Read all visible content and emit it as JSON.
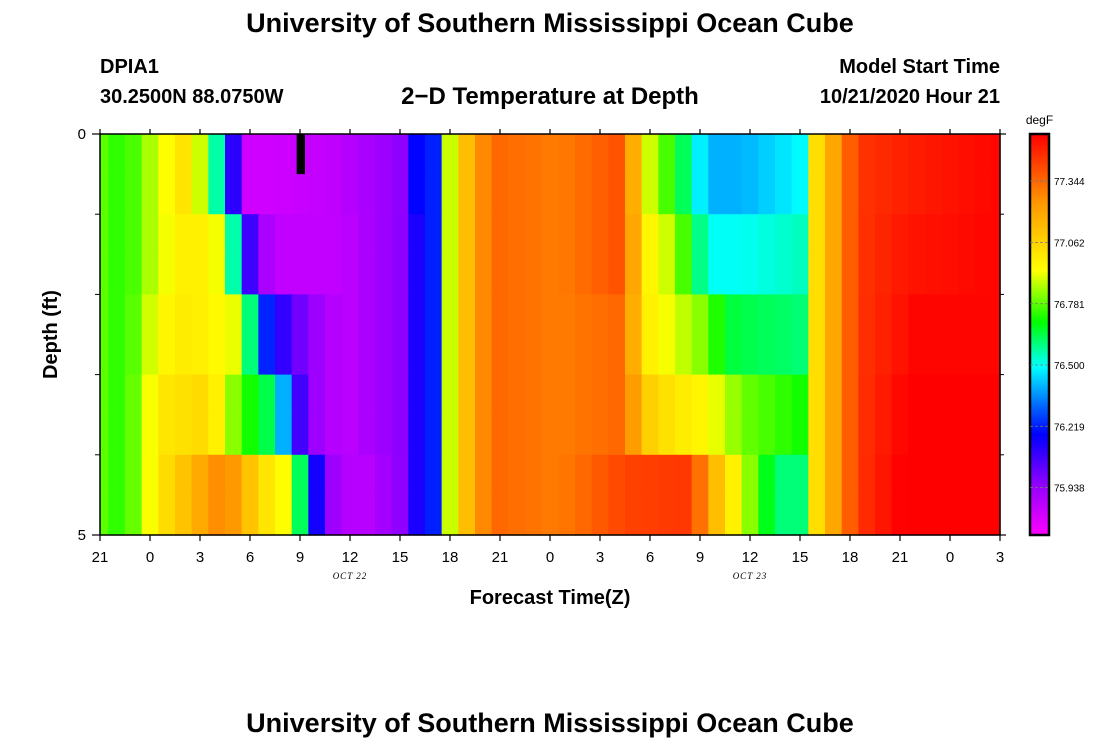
{
  "header": {
    "title": "University of Southern Mississippi Ocean Cube",
    "station_id": "DPIA1",
    "coordinates": "30.2500N 88.0750W",
    "plot_title": "2−D Temperature at Depth",
    "model_start_label": "Model Start Time",
    "model_start_value": "10/21/2020 Hour 21"
  },
  "footer": {
    "title": "University of Southern Mississippi Ocean Cube"
  },
  "chart_data": {
    "type": "heatmap",
    "title": "2−D Temperature at Depth",
    "xlabel": "Forecast Time(Z)",
    "ylabel": "Depth (ft)",
    "x_hours_from_start": [
      0,
      1,
      2,
      3,
      4,
      5,
      6,
      7,
      8,
      9,
      10,
      11,
      12,
      13,
      14,
      15,
      16,
      17,
      18,
      19,
      20,
      21,
      22,
      23,
      24,
      25,
      26,
      27,
      28,
      29,
      30,
      31,
      32,
      33,
      34,
      35,
      36,
      37,
      38,
      39,
      40,
      41,
      42,
      43,
      44,
      45,
      46,
      47,
      48,
      49,
      50,
      51,
      52,
      53,
      54
    ],
    "x_range": [
      0,
      54
    ],
    "x_tick_positions": [
      0,
      3,
      6,
      9,
      12,
      15,
      18,
      21,
      24,
      27,
      30,
      33,
      36,
      39,
      42,
      45,
      48,
      51,
      54
    ],
    "x_tick_labels": [
      "21",
      "0",
      "3",
      "6",
      "9",
      "12",
      "15",
      "18",
      "21",
      "0",
      "3",
      "6",
      "9",
      "12",
      "15",
      "18",
      "21",
      "0",
      "3"
    ],
    "date_labels": [
      {
        "x": 15,
        "text": "OCT 22"
      },
      {
        "x": 39,
        "text": "OCT 23"
      }
    ],
    "y_range": [
      0,
      5
    ],
    "y_tick_labels": [
      {
        "y": 0,
        "text": "0"
      },
      {
        "y": 5,
        "text": "5"
      }
    ],
    "y_minor_ticks": [
      1,
      2,
      3,
      4
    ],
    "depth_layers": [
      0.25,
      0.75,
      1.25,
      1.75,
      2.25,
      2.75,
      3.25,
      3.75,
      4.25,
      4.75
    ],
    "colorbar": {
      "units": "degF",
      "min": 75.72,
      "max": 77.56,
      "tick_values": [
        75.938,
        76.219,
        76.5,
        76.781,
        77.062,
        77.344
      ],
      "tick_labels": [
        "75.938",
        "76.219",
        "76.500",
        "76.781",
        "77.062",
        "77.344"
      ]
    },
    "layer_profiles": [
      {
        "depth_rows": [
          0,
          1
        ],
        "knots": [
          [
            0,
            76.78
          ],
          [
            1.5,
            76.72
          ],
          [
            3.5,
            76.9
          ],
          [
            5.5,
            77.05
          ],
          [
            7.5,
            76.4
          ],
          [
            8.5,
            75.82
          ],
          [
            10.5,
            75.82
          ],
          [
            14.5,
            75.86
          ],
          [
            18,
            75.95
          ],
          [
            19.5,
            76.3
          ],
          [
            20.5,
            76.72
          ],
          [
            21.5,
            77.05
          ],
          [
            23.5,
            77.35
          ],
          [
            27.5,
            77.3
          ],
          [
            31.5,
            77.4
          ],
          [
            32.5,
            76.95
          ],
          [
            34.5,
            76.7
          ],
          [
            36.5,
            76.4
          ],
          [
            38.5,
            76.4
          ],
          [
            42.5,
            76.5
          ],
          [
            42.8,
            77.0
          ],
          [
            45.5,
            77.45
          ],
          [
            48.5,
            77.5
          ],
          [
            54,
            77.55
          ]
        ]
      },
      {
        "depth_rows": [
          2,
          3
        ],
        "knots": [
          [
            0,
            76.78
          ],
          [
            1.5,
            76.72
          ],
          [
            3.5,
            76.9
          ],
          [
            5.5,
            77.0
          ],
          [
            7.5,
            76.9
          ],
          [
            8.5,
            76.22
          ],
          [
            9.5,
            75.94
          ],
          [
            10.5,
            75.85
          ],
          [
            14.5,
            75.85
          ],
          [
            18.5,
            75.97
          ],
          [
            19.5,
            76.3
          ],
          [
            20.5,
            76.72
          ],
          [
            21.5,
            77.05
          ],
          [
            23.5,
            77.35
          ],
          [
            27.5,
            77.3
          ],
          [
            31.5,
            77.4
          ],
          [
            32.5,
            77.0
          ],
          [
            34.5,
            76.85
          ],
          [
            36.5,
            76.5
          ],
          [
            38.5,
            76.5
          ],
          [
            42.5,
            76.55
          ],
          [
            42.8,
            77.0
          ],
          [
            45.5,
            77.45
          ],
          [
            48.5,
            77.52
          ],
          [
            54,
            77.55
          ]
        ]
      },
      {
        "depth_rows": [
          4,
          5
        ],
        "knots": [
          [
            0,
            76.78
          ],
          [
            1.5,
            76.72
          ],
          [
            3.5,
            76.95
          ],
          [
            5.5,
            77.0
          ],
          [
            8.5,
            76.9
          ],
          [
            9.5,
            76.3
          ],
          [
            10.5,
            76.15
          ],
          [
            12.5,
            75.95
          ],
          [
            14.5,
            75.85
          ],
          [
            18.5,
            75.97
          ],
          [
            19.5,
            76.3
          ],
          [
            20.5,
            76.72
          ],
          [
            21.5,
            77.05
          ],
          [
            23.5,
            77.35
          ],
          [
            27.5,
            77.3
          ],
          [
            31.5,
            77.35
          ],
          [
            32.5,
            77.0
          ],
          [
            34.5,
            76.9
          ],
          [
            36.5,
            76.8
          ],
          [
            37.5,
            76.65
          ],
          [
            42.5,
            76.6
          ],
          [
            42.8,
            77.0
          ],
          [
            45.5,
            77.45
          ],
          [
            49,
            77.55
          ],
          [
            54,
            77.55
          ]
        ]
      },
      {
        "depth_rows": [
          6,
          7
        ],
        "knots": [
          [
            0,
            76.78
          ],
          [
            1.5,
            76.72
          ],
          [
            3.5,
            77.0
          ],
          [
            6.5,
            77.05
          ],
          [
            8.5,
            76.75
          ],
          [
            10.5,
            76.6
          ],
          [
            11.5,
            76.2
          ],
          [
            12.5,
            75.95
          ],
          [
            14.5,
            75.85
          ],
          [
            18.5,
            75.97
          ],
          [
            19.5,
            76.3
          ],
          [
            20.5,
            76.72
          ],
          [
            21.5,
            77.05
          ],
          [
            23.5,
            77.35
          ],
          [
            27.5,
            77.3
          ],
          [
            31.5,
            77.35
          ],
          [
            32.5,
            77.1
          ],
          [
            34.5,
            77.0
          ],
          [
            36.5,
            76.95
          ],
          [
            38.5,
            76.8
          ],
          [
            40.5,
            76.75
          ],
          [
            42.5,
            76.7
          ],
          [
            42.8,
            77.0
          ],
          [
            45.5,
            77.45
          ],
          [
            49,
            77.58
          ],
          [
            54,
            77.56
          ]
        ]
      },
      {
        "depth_rows": [
          8,
          9
        ],
        "knots": [
          [
            0,
            76.78
          ],
          [
            1.5,
            76.72
          ],
          [
            3.5,
            77.0
          ],
          [
            5.5,
            77.15
          ],
          [
            7.5,
            77.3
          ],
          [
            9.5,
            77.05
          ],
          [
            11.5,
            76.9
          ],
          [
            12.5,
            76.35
          ],
          [
            13.5,
            75.95
          ],
          [
            15.5,
            75.85
          ],
          [
            18.5,
            75.97
          ],
          [
            19.5,
            76.3
          ],
          [
            20.5,
            76.72
          ],
          [
            21.5,
            77.05
          ],
          [
            23.5,
            77.35
          ],
          [
            27.5,
            77.3
          ],
          [
            31.5,
            77.42
          ],
          [
            35.5,
            77.45
          ],
          [
            36.5,
            77.2
          ],
          [
            38.5,
            76.9
          ],
          [
            39.5,
            76.75
          ],
          [
            40.5,
            76.6
          ],
          [
            42.5,
            76.6
          ],
          [
            42.8,
            77.0
          ],
          [
            45.5,
            77.45
          ],
          [
            49,
            77.6
          ],
          [
            54,
            77.56
          ]
        ]
      }
    ],
    "band_overrides": [
      {
        "depth_rows": [
          0,
          1,
          2,
          3,
          4,
          5,
          6,
          7,
          8,
          9
        ],
        "x_from": 19.5,
        "x_to": 20.5,
        "value": 76.22
      }
    ],
    "missing_cells": [
      {
        "x_from": 11.8,
        "x_to": 12.3,
        "y_from": 0,
        "y_to": 0.5
      }
    ]
  }
}
